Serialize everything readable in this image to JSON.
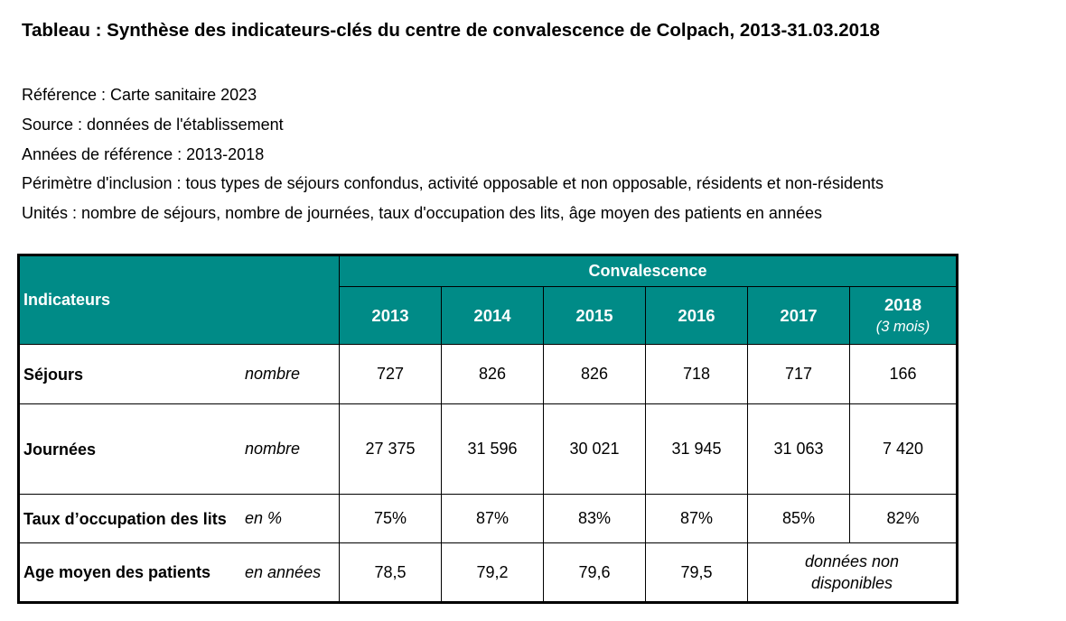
{
  "title": "Tableau : Synthèse des indicateurs-clés du centre de convalescence de Colpach, 2013-31.03.2018",
  "meta": [
    "Référence : Carte sanitaire 2023",
    "Source : données de l'établissement",
    "Années de référence : 2013-2018",
    "Périmètre d'inclusion : tous types de séjours confondus, activité opposable et non opposable, résidents et non-résidents",
    "Unités : nombre de séjours, nombre de journées, taux d'occupation des lits, âge moyen des patients en années"
  ],
  "table": {
    "header_indicators": "Indicateurs",
    "header_group": "Convalescence",
    "years": [
      "2013",
      "2014",
      "2015",
      "2016",
      "2017",
      "2018"
    ],
    "last_year_note": "(3 mois)",
    "rows": [
      {
        "label": "Séjours",
        "unit": "nombre",
        "values": [
          "727",
          "826",
          "826",
          "718",
          "717",
          "166"
        ]
      },
      {
        "label": "Journées",
        "unit": "nombre",
        "values": [
          "27 375",
          "31 596",
          "30 021",
          "31 945",
          "31 063",
          "7 420"
        ]
      },
      {
        "label": "Taux d’occupation des lits",
        "unit": "en %",
        "values": [
          "75%",
          "87%",
          "83%",
          "87%",
          "85%",
          "82%"
        ]
      },
      {
        "label": "Age moyen des patients",
        "unit": "en années",
        "values": [
          "78,5",
          "79,2",
          "79,6",
          "79,5"
        ],
        "not_available": "données non disponibles"
      }
    ]
  },
  "colors": {
    "header_bg": "#008b87",
    "header_text": "#ffffff"
  }
}
